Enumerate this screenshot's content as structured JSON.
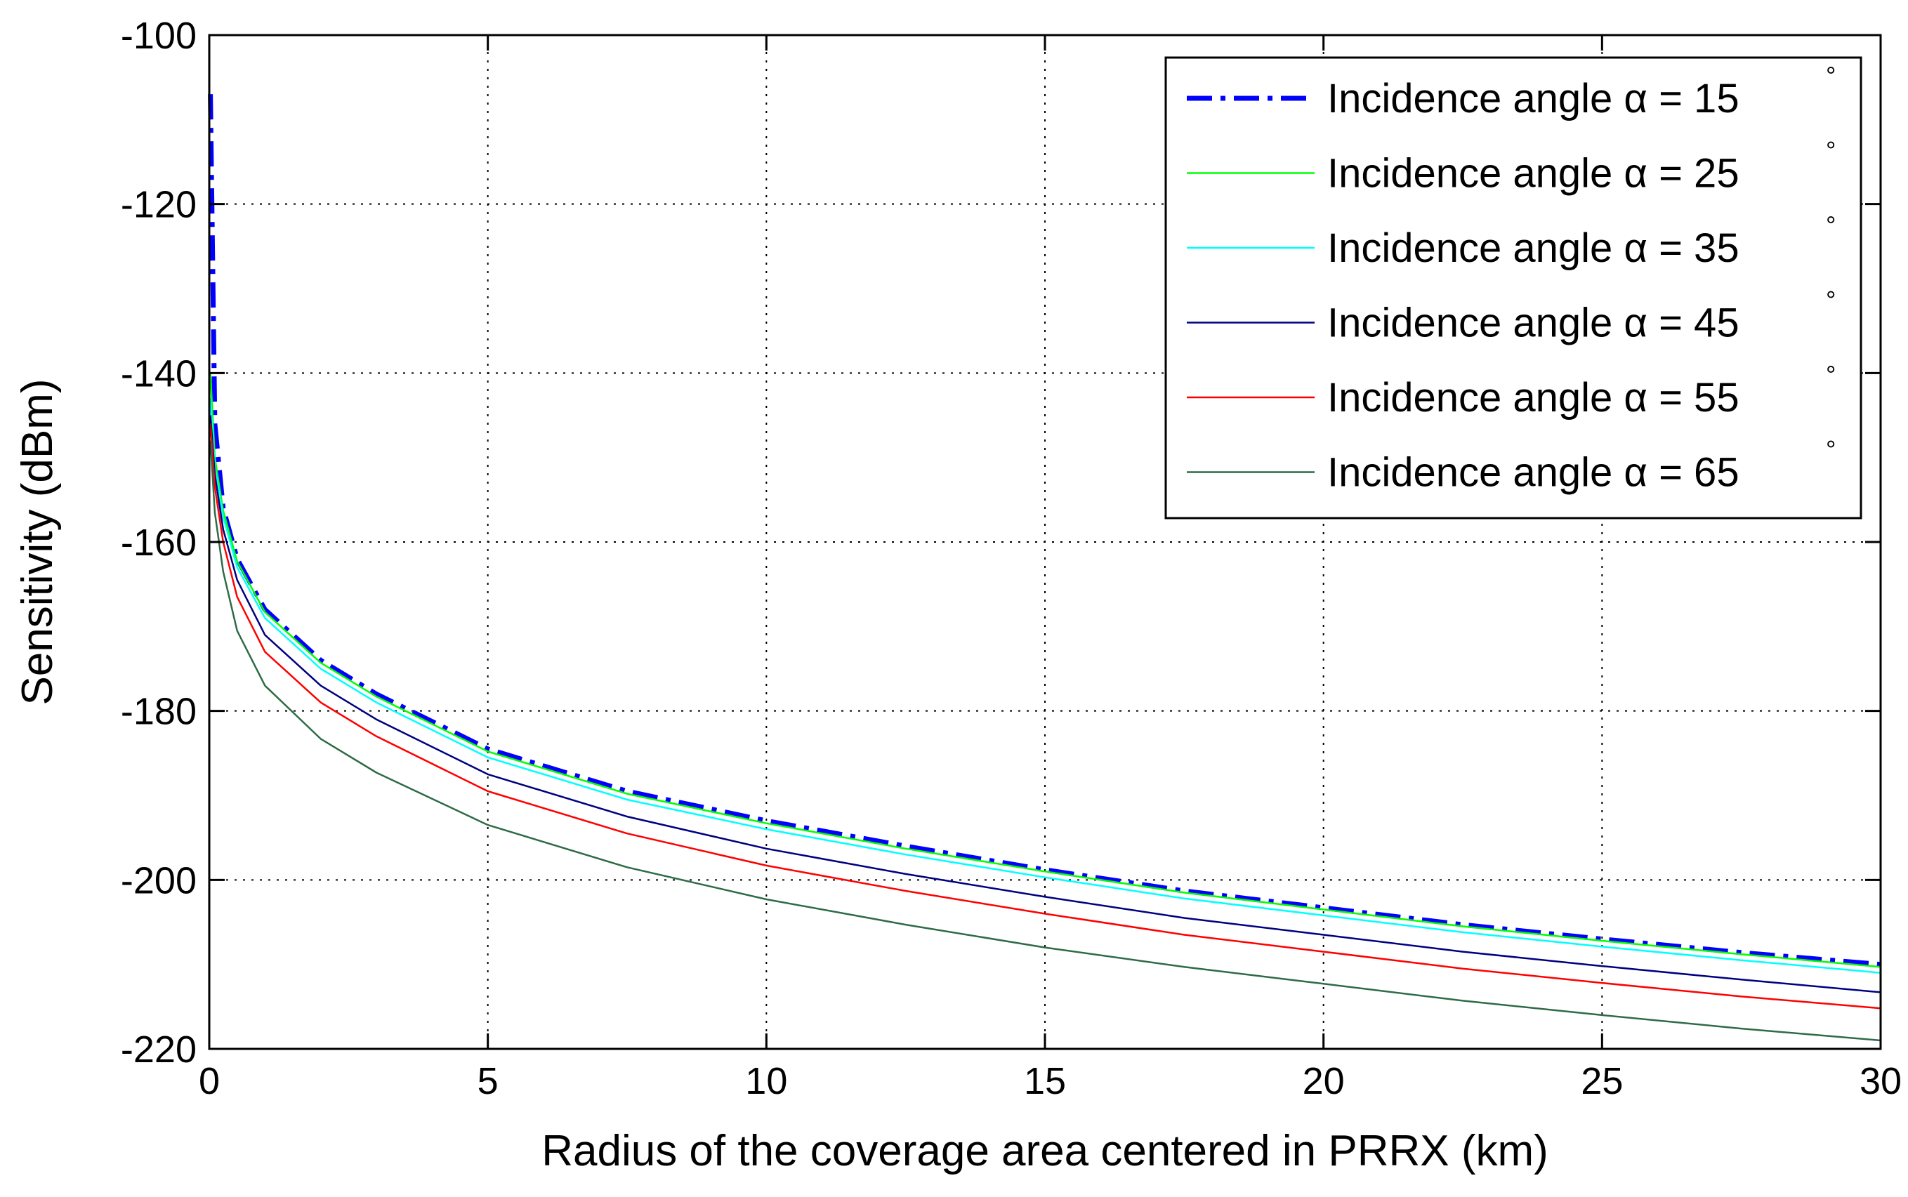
{
  "chart_data": {
    "type": "line",
    "title": "",
    "xlabel": "Radius of the coverage area centered in PRRX (km)",
    "ylabel": "Sensitivity (dBm)",
    "xlim": [
      0,
      30
    ],
    "ylim": [
      -220,
      -100
    ],
    "x_ticks": [
      0,
      5,
      10,
      15,
      20,
      25,
      30
    ],
    "x_tick_labels": [
      "0",
      "5",
      "10",
      "15",
      "20",
      "25",
      "30"
    ],
    "y_ticks": [
      -100,
      -120,
      -140,
      -160,
      -180,
      -200,
      -220
    ],
    "y_tick_labels": [
      "-100",
      "-120",
      "-140",
      "-160",
      "-180",
      "-200",
      "-220"
    ],
    "grid": true,
    "legend_position": "top-right",
    "x": [
      0.02,
      0.1,
      0.25,
      0.5,
      1,
      2,
      3,
      5,
      7.5,
      10,
      12.5,
      15,
      17.5,
      20,
      22.5,
      25,
      27.5,
      30
    ],
    "series": [
      {
        "name": "Incidence angle α = 15",
        "legend_label": "Incidence angle α = 15",
        "legend_sup": "°",
        "color": "#0000ff",
        "style": "dash-dot",
        "values": [
          -107,
          -146,
          -156,
          -162,
          -168,
          -174,
          -178,
          -184.5,
          -189.5,
          -193,
          -196,
          -198.8,
          -201.3,
          -203.3,
          -205.3,
          -207,
          -208.6,
          -210
        ]
      },
      {
        "name": "Incidence angle α = 25",
        "legend_label": "Incidence angle α = 25",
        "legend_sup": "°",
        "color": "#00ff00",
        "style": "solid",
        "values": [
          -140,
          -150,
          -156.3,
          -162.3,
          -168.3,
          -174.3,
          -178.3,
          -184.8,
          -189.8,
          -193.3,
          -196.3,
          -199,
          -201.5,
          -203.5,
          -205.5,
          -207.2,
          -208.8,
          -210.3
        ]
      },
      {
        "name": "Incidence angle α = 35",
        "legend_label": "Incidence angle α = 35",
        "legend_sup": "°",
        "color": "#00ffff",
        "style": "solid",
        "values": [
          -143,
          -151,
          -157,
          -163,
          -169,
          -175,
          -179,
          -185.5,
          -190.5,
          -194,
          -197,
          -199.7,
          -202.2,
          -204.2,
          -206.2,
          -207.9,
          -209.5,
          -211
        ]
      },
      {
        "name": "Incidence angle α = 45",
        "legend_label": "Incidence angle α = 45",
        "legend_sup": "°",
        "color": "#000080",
        "style": "solid",
        "values": [
          -145,
          -152,
          -158.5,
          -164.5,
          -171,
          -177,
          -181,
          -187.5,
          -192.5,
          -196.3,
          -199.3,
          -202,
          -204.5,
          -206.5,
          -208.5,
          -210.2,
          -211.8,
          -213.3
        ]
      },
      {
        "name": "Incidence angle α = 55",
        "legend_label": "Incidence angle α = 55",
        "legend_sup": "°",
        "color": "#ff0000",
        "style": "solid",
        "values": [
          -146,
          -153.5,
          -160,
          -166.5,
          -173,
          -179,
          -183,
          -189.5,
          -194.5,
          -198.3,
          -201.3,
          -204,
          -206.5,
          -208.5,
          -210.5,
          -212.2,
          -213.8,
          -215.2
        ]
      },
      {
        "name": "Incidence angle α = 65",
        "legend_label": "Incidence angle α = 65",
        "legend_sup": "°",
        "color": "#2e6b46",
        "style": "solid",
        "values": [
          -148,
          -156.5,
          -163.5,
          -170.5,
          -177,
          -183.3,
          -187.3,
          -193.5,
          -198.5,
          -202.3,
          -205.3,
          -208,
          -210.3,
          -212.3,
          -214.3,
          -216,
          -217.6,
          -219
        ]
      }
    ]
  }
}
